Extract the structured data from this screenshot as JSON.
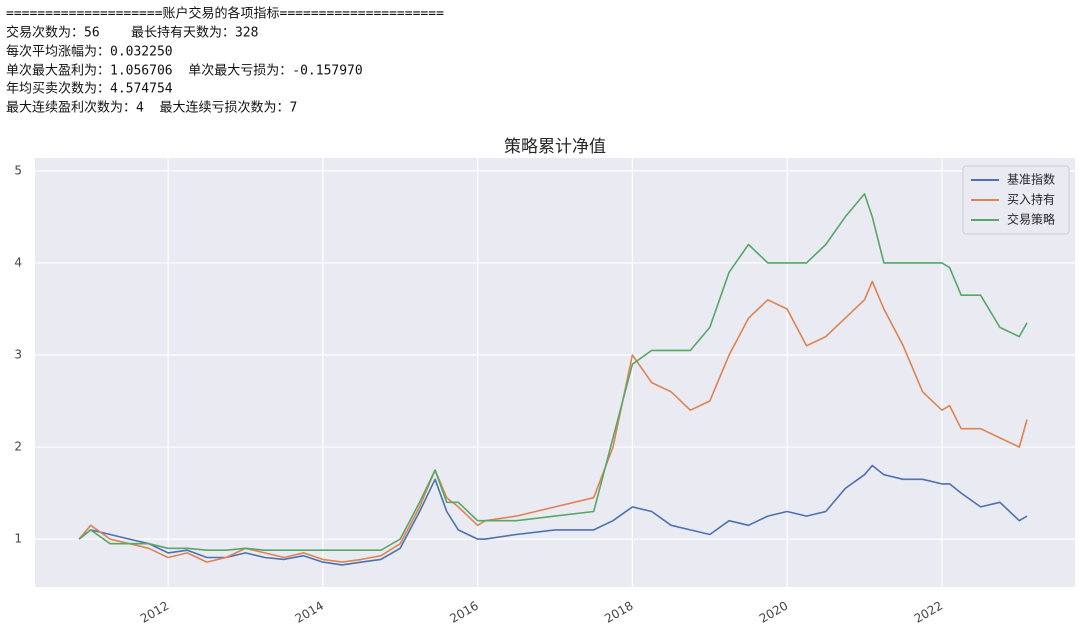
{
  "log_lines": [
    "====================账户交易的各项指标=====================",
    "交易次数为：56    最长持有天数为：328",
    "每次平均涨幅为：0.032250",
    "单次最大盈利为：1.056706  单次最大亏损为：-0.157970",
    "年均买卖次数为：4.574754",
    "最大连续盈利次数为：4  最大连续亏损次数为：7"
  ],
  "chart_data": {
    "type": "line",
    "title": "策略累计净值",
    "x": [
      2010.85,
      2011.0,
      2011.25,
      2011.5,
      2011.75,
      2012.0,
      2012.25,
      2012.5,
      2012.75,
      2013.0,
      2013.25,
      2013.5,
      2013.75,
      2014.0,
      2014.25,
      2014.5,
      2014.75,
      2015.0,
      2015.25,
      2015.45,
      2015.6,
      2015.75,
      2016.0,
      2016.1,
      2016.5,
      2017.0,
      2017.5,
      2017.75,
      2018.0,
      2018.25,
      2018.5,
      2018.75,
      2019.0,
      2019.25,
      2019.5,
      2019.75,
      2020.0,
      2020.25,
      2020.5,
      2020.75,
      2021.0,
      2021.1,
      2021.25,
      2021.5,
      2021.75,
      2022.0,
      2022.1,
      2022.25,
      2022.5,
      2022.75,
      2023.0,
      2023.1
    ],
    "series": [
      {
        "name": "基准指数",
        "color": "#4c72b0",
        "values": [
          1.0,
          1.1,
          1.05,
          1.0,
          0.95,
          0.85,
          0.88,
          0.8,
          0.8,
          0.85,
          0.8,
          0.78,
          0.82,
          0.75,
          0.72,
          0.75,
          0.78,
          0.9,
          1.3,
          1.65,
          1.3,
          1.1,
          1.0,
          1.0,
          1.05,
          1.1,
          1.1,
          1.2,
          1.35,
          1.3,
          1.15,
          1.1,
          1.05,
          1.2,
          1.15,
          1.25,
          1.3,
          1.25,
          1.3,
          1.55,
          1.7,
          1.8,
          1.7,
          1.65,
          1.65,
          1.6,
          1.6,
          1.5,
          1.35,
          1.4,
          1.2,
          1.25
        ]
      },
      {
        "name": "买入持有",
        "color": "#dd8452",
        "values": [
          1.0,
          1.15,
          1.0,
          0.95,
          0.9,
          0.8,
          0.85,
          0.75,
          0.8,
          0.9,
          0.85,
          0.8,
          0.85,
          0.78,
          0.75,
          0.78,
          0.82,
          0.95,
          1.35,
          1.75,
          1.45,
          1.35,
          1.15,
          1.2,
          1.25,
          1.35,
          1.45,
          2.0,
          3.0,
          2.7,
          2.6,
          2.4,
          2.5,
          3.0,
          3.4,
          3.6,
          3.5,
          3.1,
          3.2,
          3.4,
          3.6,
          3.8,
          3.5,
          3.1,
          2.6,
          2.4,
          2.45,
          2.2,
          2.2,
          2.1,
          2.0,
          2.3
        ]
      },
      {
        "name": "交易策略",
        "color": "#55a868",
        "values": [
          1.0,
          1.1,
          0.95,
          0.95,
          0.95,
          0.9,
          0.9,
          0.88,
          0.88,
          0.9,
          0.88,
          0.88,
          0.88,
          0.88,
          0.88,
          0.88,
          0.88,
          1.0,
          1.4,
          1.75,
          1.4,
          1.4,
          1.2,
          1.2,
          1.2,
          1.25,
          1.3,
          2.1,
          2.9,
          3.05,
          3.05,
          3.05,
          3.3,
          3.9,
          4.2,
          4.0,
          4.0,
          4.0,
          4.2,
          4.5,
          4.75,
          4.5,
          4.0,
          4.0,
          4.0,
          4.0,
          3.95,
          3.65,
          3.65,
          3.3,
          3.2,
          3.35
        ]
      }
    ],
    "xlim": [
      2010.28,
      2023.72
    ],
    "xticks": [
      2012,
      2014,
      2016,
      2018,
      2020,
      2022
    ],
    "ylim": [
      0.48,
      5.14
    ],
    "yticks": [
      1,
      2,
      3,
      4,
      5
    ],
    "grid": true,
    "legend": "upper right",
    "background": "#eaeaf2"
  }
}
